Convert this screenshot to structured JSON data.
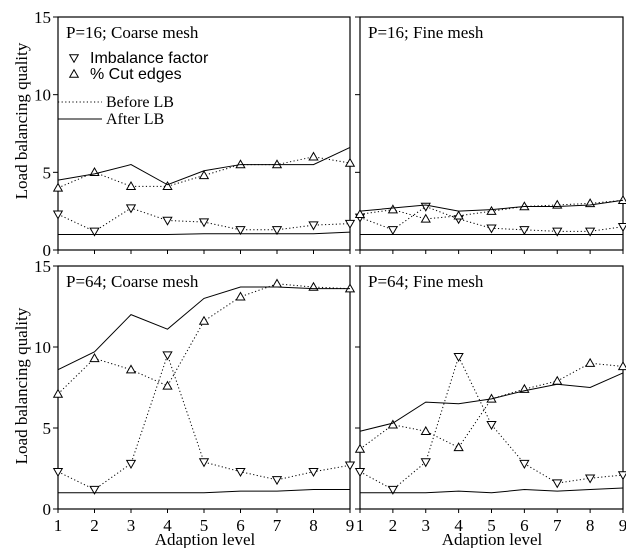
{
  "chart_data": {
    "type": "line",
    "ylabel": "Load balancing quality",
    "xlabel": "Adaption level",
    "xlim": [
      1,
      9
    ],
    "ylim": [
      0,
      15
    ],
    "xticks": [
      "1",
      "2",
      "3",
      "4",
      "5",
      "6",
      "7",
      "8",
      "9"
    ],
    "yticks": [
      "0",
      "5",
      "10",
      "15"
    ],
    "legend": {
      "placement": "top-left of first panel",
      "items": [
        {
          "label": "Imbalance factor",
          "marker": "triangle-down"
        },
        {
          "label": "% Cut edges",
          "marker": "triangle-up"
        },
        {
          "label": "Before LB",
          "line": "dotted"
        },
        {
          "label": "After LB",
          "line": "solid"
        }
      ]
    },
    "panels": [
      {
        "title": "P=16; Coarse mesh",
        "x": [
          1,
          2,
          3,
          4,
          5,
          6,
          7,
          8,
          9
        ],
        "series": [
          {
            "name": "Imbalance factor",
            "stage": "Before LB",
            "values": [
              2.3,
              1.2,
              2.7,
              1.9,
              1.8,
              1.3,
              1.3,
              1.6,
              1.7
            ]
          },
          {
            "name": "Imbalance factor",
            "stage": "After LB",
            "values": [
              1.0,
              1.0,
              1.0,
              1.0,
              1.05,
              1.05,
              1.05,
              1.05,
              1.15
            ]
          },
          {
            "name": "% Cut edges",
            "stage": "Before LB",
            "values": [
              4.0,
              5.0,
              4.1,
              4.1,
              4.8,
              5.5,
              5.5,
              6.0,
              5.6
            ]
          },
          {
            "name": "% Cut edges",
            "stage": "After LB",
            "values": [
              4.5,
              4.9,
              5.5,
              4.2,
              5.1,
              5.5,
              5.5,
              5.5,
              6.6
            ]
          }
        ]
      },
      {
        "title": "P=16; Fine mesh",
        "x": [
          1,
          2,
          3,
          4,
          5,
          6,
          7,
          8,
          9
        ],
        "series": [
          {
            "name": "Imbalance factor",
            "stage": "Before LB",
            "values": [
              2.1,
              1.3,
              2.8,
              2.0,
              1.4,
              1.3,
              1.2,
              1.2,
              1.5
            ]
          },
          {
            "name": "Imbalance factor",
            "stage": "After LB",
            "values": [
              1.0,
              1.0,
              1.0,
              1.0,
              1.0,
              1.0,
              1.0,
              1.0,
              1.0
            ]
          },
          {
            "name": "% Cut edges",
            "stage": "Before LB",
            "values": [
              2.3,
              2.6,
              2.0,
              2.2,
              2.5,
              2.8,
              2.9,
              3.0,
              3.2
            ]
          },
          {
            "name": "% Cut edges",
            "stage": "After LB",
            "values": [
              2.5,
              2.7,
              2.9,
              2.5,
              2.6,
              2.8,
              2.8,
              2.9,
              3.2
            ]
          }
        ]
      },
      {
        "title": "P=64; Coarse mesh",
        "x": [
          1,
          2,
          3,
          4,
          5,
          6,
          7,
          8,
          9
        ],
        "series": [
          {
            "name": "Imbalance factor",
            "stage": "Before LB",
            "values": [
              2.3,
              1.2,
              2.8,
              9.5,
              2.9,
              2.3,
              1.8,
              2.3,
              2.7
            ]
          },
          {
            "name": "Imbalance factor",
            "stage": "After LB",
            "values": [
              1.0,
              1.0,
              1.0,
              1.0,
              1.0,
              1.1,
              1.1,
              1.2,
              1.2
            ]
          },
          {
            "name": "% Cut edges",
            "stage": "Before LB",
            "values": [
              7.1,
              9.3,
              8.6,
              7.6,
              11.6,
              13.1,
              13.9,
              13.7,
              13.6
            ]
          },
          {
            "name": "% Cut edges",
            "stage": "After LB",
            "values": [
              8.6,
              9.7,
              12.0,
              11.1,
              13.0,
              13.7,
              13.7,
              13.6,
              13.6
            ]
          }
        ]
      },
      {
        "title": "P=64; Fine mesh",
        "x": [
          1,
          2,
          3,
          4,
          5,
          6,
          7,
          8,
          9
        ],
        "series": [
          {
            "name": "Imbalance factor",
            "stage": "Before LB",
            "values": [
              2.3,
              1.2,
              2.9,
              9.4,
              5.2,
              2.8,
              1.6,
              1.9,
              2.1
            ]
          },
          {
            "name": "Imbalance factor",
            "stage": "After LB",
            "values": [
              1.0,
              1.0,
              1.0,
              1.1,
              1.0,
              1.2,
              1.1,
              1.2,
              1.3
            ]
          },
          {
            "name": "% Cut edges",
            "stage": "Before LB",
            "values": [
              3.7,
              5.2,
              4.8,
              3.8,
              6.8,
              7.4,
              7.9,
              9.0,
              8.8
            ]
          },
          {
            "name": "% Cut edges",
            "stage": "After LB",
            "values": [
              4.8,
              5.3,
              6.6,
              6.5,
              6.8,
              7.3,
              7.7,
              7.5,
              8.4
            ]
          }
        ]
      }
    ]
  }
}
